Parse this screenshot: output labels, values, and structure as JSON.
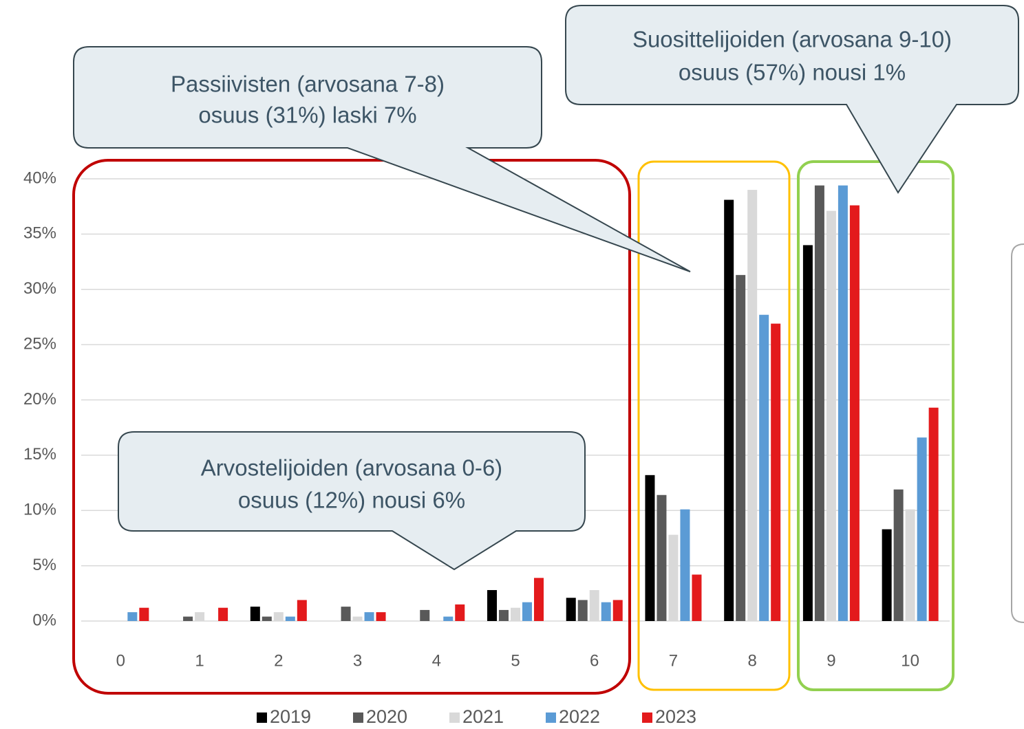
{
  "chart_data": {
    "type": "bar",
    "categories": [
      "0",
      "1",
      "2",
      "3",
      "4",
      "5",
      "6",
      "7",
      "8",
      "9",
      "10"
    ],
    "series": [
      {
        "name": "2019",
        "color": "#000000",
        "values": [
          0,
          0,
          1.3,
          0,
          0,
          2.8,
          2.1,
          13.2,
          38.1,
          34.0,
          8.3
        ]
      },
      {
        "name": "2020",
        "color": "#595959",
        "values": [
          0,
          0.4,
          0.4,
          1.3,
          1.0,
          1.0,
          1.9,
          11.4,
          31.3,
          39.4,
          11.9
        ]
      },
      {
        "name": "2021",
        "color": "#d9d9d9",
        "values": [
          0,
          0.8,
          0.8,
          0.4,
          0,
          1.2,
          2.8,
          7.8,
          39.0,
          37.1,
          10.1
        ]
      },
      {
        "name": "2022",
        "color": "#5b9bd5",
        "values": [
          0.8,
          0,
          0.4,
          0.8,
          0.4,
          1.7,
          1.7,
          10.1,
          27.7,
          39.4,
          16.6
        ]
      },
      {
        "name": "2023",
        "color": "#e31a1c",
        "values": [
          1.2,
          1.2,
          1.9,
          0.8,
          1.5,
          3.9,
          1.9,
          4.2,
          26.9,
          37.6,
          19.3
        ]
      }
    ],
    "ylim": [
      0,
      40
    ],
    "yticks": [
      {
        "value": 0,
        "label": "0%"
      },
      {
        "value": 5,
        "label": "5%"
      },
      {
        "value": 10,
        "label": "10%"
      },
      {
        "value": 15,
        "label": "15%"
      },
      {
        "value": 20,
        "label": "20%"
      },
      {
        "value": 25,
        "label": "25%"
      },
      {
        "value": 30,
        "label": "30%"
      },
      {
        "value": 35,
        "label": "35%"
      },
      {
        "value": 40,
        "label": "40%"
      }
    ],
    "grid": true,
    "legend": "bottom",
    "annotations": [
      {
        "lines": [
          "Passiivisten (arvosana 7-8)",
          "osuus (31%) laski 7%"
        ]
      },
      {
        "lines": [
          "Suosittelijoiden (arvosana 9-10)",
          "osuus (57%) nousi 1%"
        ]
      },
      {
        "lines": [
          "Arvostelijoiden (arvosana 0-6)",
          "osuus (12%) nousi 6%"
        ]
      }
    ]
  }
}
